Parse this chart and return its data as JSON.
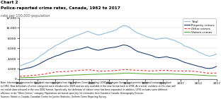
{
  "title_line1": "Chart 2",
  "title_line2": "Police-reported crime rates, Canada, 1962 to 2017",
  "ylabel": "rate per 100,000 population",
  "years": [
    1962,
    1963,
    1964,
    1965,
    1966,
    1967,
    1968,
    1969,
    1970,
    1971,
    1972,
    1973,
    1974,
    1975,
    1976,
    1977,
    1978,
    1979,
    1980,
    1981,
    1982,
    1983,
    1984,
    1985,
    1986,
    1987,
    1988,
    1989,
    1990,
    1991,
    1992,
    1993,
    1994,
    1995,
    1996,
    1997,
    1998,
    1999,
    2000,
    2001,
    2002,
    2003,
    2004,
    2005,
    2006,
    2007,
    2008,
    2009,
    2010,
    2011,
    2012,
    2013,
    2014,
    2015,
    2016,
    2017
  ],
  "total": [
    2500,
    2750,
    3050,
    3250,
    3600,
    4050,
    4600,
    5050,
    5600,
    6000,
    6500,
    6800,
    7200,
    7600,
    7900,
    8200,
    8500,
    8750,
    9000,
    9350,
    9050,
    8800,
    8600,
    8750,
    8950,
    9150,
    9350,
    9600,
    10100,
    10450,
    10350,
    9900,
    9350,
    8950,
    8700,
    8400,
    8150,
    7950,
    7750,
    7850,
    7950,
    8000,
    7750,
    7600,
    7300,
    6950,
    6450,
    6250,
    5950,
    5650,
    5250,
    4950,
    4650,
    4450,
    4600,
    4900
  ],
  "property": [
    1750,
    1900,
    2100,
    2200,
    2450,
    2750,
    3100,
    3500,
    3850,
    4150,
    4450,
    4650,
    4950,
    5250,
    5450,
    5550,
    5750,
    5850,
    6050,
    6250,
    5950,
    5750,
    5600,
    5750,
    5950,
    6050,
    6150,
    6250,
    6450,
    6650,
    6550,
    6250,
    5750,
    5350,
    5150,
    4950,
    4750,
    4550,
    4250,
    4150,
    4250,
    4350,
    4150,
    4050,
    3850,
    3550,
    3250,
    3050,
    2850,
    2650,
    2450,
    2300,
    2100,
    2050,
    2150,
    2450
  ],
  "other": [
    500,
    550,
    580,
    640,
    700,
    760,
    850,
    960,
    1100,
    1200,
    1350,
    1380,
    1420,
    1450,
    1480,
    1560,
    1620,
    1680,
    1720,
    1780,
    1730,
    1640,
    1560,
    1530,
    1540,
    1580,
    1600,
    1650,
    1740,
    1790,
    1840,
    1750,
    1700,
    1700,
    1660,
    1620,
    1570,
    1560,
    1600,
    1650,
    1660,
    1660,
    1620,
    1570,
    1550,
    1560,
    1550,
    1570,
    1520,
    1470,
    1380,
    1280,
    1180,
    1090,
    1130,
    1130
  ],
  "violent": [
    220,
    240,
    260,
    280,
    310,
    340,
    390,
    440,
    490,
    540,
    580,
    610,
    640,
    680,
    720,
    750,
    770,
    790,
    820,
    860,
    880,
    900,
    920,
    940,
    960,
    980,
    1000,
    1030,
    1070,
    1110,
    1130,
    1120,
    1090,
    1060,
    1030,
    1010,
    990,
    960,
    940,
    960,
    970,
    980,
    960,
    940,
    910,
    890,
    870,
    850,
    820,
    790,
    750,
    710,
    670,
    630,
    610,
    590
  ],
  "total_color": "#8db8d8",
  "property_color": "#1a3a6b",
  "other_color": "#e03030",
  "violent_color": "#5faa3a",
  "background_color": "#ffffff",
  "ylim_min": 0,
  "ylim_max": 12000,
  "yticks": [
    0,
    2000,
    4000,
    6000,
    8000,
    10000,
    12000
  ],
  "legend_labels": [
    "Total",
    "Property crimes",
    "Other crimes",
    "Violent crimes"
  ],
  "xmin": 1962,
  "xmax": 2017,
  "note_text": "Note: Information presented in this chart represents data from the Uniform Crime Reporting (UCR1) Aggregate Survey, and permits historical comparisons back to 1962. New definitions of crime categories were introduced in 2009 and are only available in the new format back to 1998. As a result, numbers in this chart will not match data released in the new UCR2 format. Specifically, the definition of violent crime has been expanded. In addition, UCR1 includes some different offences in the “Other Crimes” category. Populations are based upon July 1st estimates from Statistics Canada, Demography Division.",
  "sources_text": "Sources: Statistics Canada, Canadian Centre for Justice Statistics, Uniform Crime Reporting Survey."
}
